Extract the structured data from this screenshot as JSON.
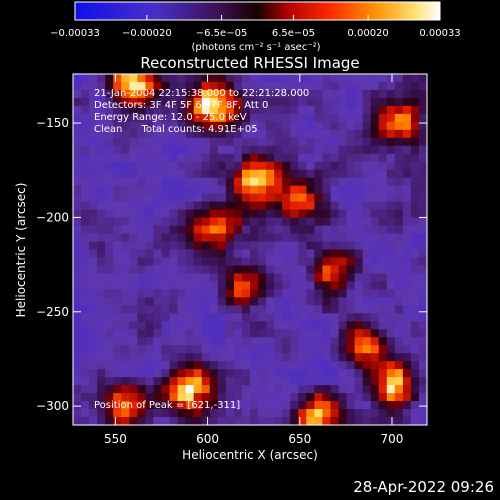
{
  "chart_data": {
    "type": "heatmap",
    "title": "Reconstructed RHESSI Image",
    "xlabel": "Heliocentric X (arcsec)",
    "ylabel": "Heliocentric Y (arcsec)",
    "xlim": [
      527,
      719
    ],
    "ylim": [
      -310,
      -124
    ],
    "x_ticks": [
      550,
      600,
      650,
      700
    ],
    "y_ticks": [
      -150,
      -200,
      -250,
      -300
    ],
    "y_tick_labels": [
      "−150",
      "−200",
      "−250",
      "−300"
    ],
    "colorbar": {
      "range": [
        -0.00033,
        0.00033
      ],
      "ticks": [
        -0.00033,
        -0.0002,
        -6.5e-05,
        6.5e-05,
        0.0002,
        0.00033
      ],
      "tick_labels": [
        "−0.00033",
        "−0.00020",
        "−6.5e−05",
        "6.5e−05",
        "0.00020",
        "0.00033"
      ],
      "unit_label": "(photons cm⁻² s⁻¹ asec⁻²)",
      "colormap": "blue-purple-red-orange-yellow-white"
    },
    "annotations": [
      "21-Jan-2004 22:15:38.000 to 22:21:28.000",
      "Detectors: 3F 4F 5F 6F 7F 8F, Att 0",
      "Energy Range: 12.0 - 25.0 keV",
      "Clean      Total counts: 4.91E+05"
    ],
    "peak_label": "Position of Peak = [621,-311]",
    "peak": {
      "x": 621,
      "y": -311
    },
    "bright_regions": [
      {
        "x": 603,
        "y": -140,
        "level": 1.0
      },
      {
        "x": 560,
        "y": -128,
        "level": 0.85
      },
      {
        "x": 705,
        "y": -150,
        "level": 0.8
      },
      {
        "x": 625,
        "y": -180,
        "level": 0.9
      },
      {
        "x": 605,
        "y": -205,
        "level": 0.7
      },
      {
        "x": 650,
        "y": -190,
        "level": 0.75
      },
      {
        "x": 620,
        "y": -238,
        "level": 0.65
      },
      {
        "x": 668,
        "y": -228,
        "level": 0.6
      },
      {
        "x": 590,
        "y": -292,
        "level": 0.95
      },
      {
        "x": 555,
        "y": -300,
        "level": 0.7
      },
      {
        "x": 660,
        "y": -305,
        "level": 0.75
      },
      {
        "x": 700,
        "y": -288,
        "level": 0.9
      },
      {
        "x": 685,
        "y": -268,
        "level": 0.6
      }
    ],
    "grid": false,
    "legend": "none"
  },
  "footer": {
    "timestamp": "28-Apr-2022 09:26"
  }
}
